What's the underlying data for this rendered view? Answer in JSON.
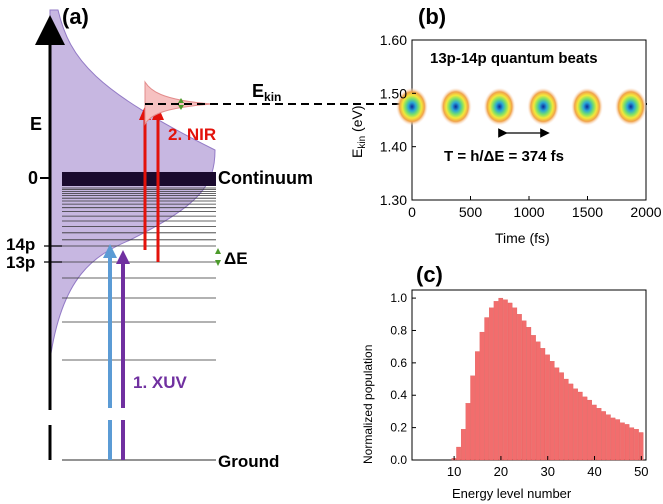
{
  "panel_a": {
    "panel_label": "(a)",
    "energy_axis_label": "E",
    "zero_label": "0",
    "ekin_label": "E",
    "ekin_sub": "kin",
    "nir_label": "2. NIR",
    "continuum_label": "Continuum",
    "delta_e_label": "ΔE",
    "state_14p": "14p",
    "state_13p": "13p",
    "xuv_label": "1. XUV",
    "ground_label": "Ground",
    "colors": {
      "xuv_blue": "#5b9bd5",
      "xuv_purple": "#7030a0",
      "nir": "#e3120b",
      "wavepacket": "#b9a3d6",
      "continuum": "#1a0a2e"
    }
  },
  "panel_b": {
    "panel_label": "(b)",
    "title": "13p-14p quantum beats",
    "period_label": "T = h/ΔE = 374 fs",
    "xlabel": "Time (fs)",
    "ylabel": "E",
    "ylabel_sub": "kin",
    "ylabel_unit": " (eV)"
  },
  "panel_c": {
    "panel_label": "(c)",
    "xlabel": "Energy level number",
    "ylabel": "Normalized population"
  },
  "chart_data": [
    {
      "type": "heatmap",
      "title": "13p-14p quantum beats",
      "xlabel": "Time (fs)",
      "ylabel": "Ekin (eV)",
      "xlim": [
        0,
        2000
      ],
      "ylim": [
        1.3,
        1.6
      ],
      "xticks": [
        "0",
        "500",
        "1000",
        "1500",
        "2000"
      ],
      "yticks": [
        "1.30",
        "1.40",
        "1.50",
        "1.60"
      ],
      "peak_energy": 1.475,
      "peak_times": [
        0,
        374,
        748,
        1122,
        1496,
        1870
      ]
    },
    {
      "type": "bar",
      "xlabel": "Energy level number",
      "ylabel": "Normalized population",
      "xlim": [
        1,
        51
      ],
      "ylim": [
        0,
        1.05
      ],
      "xticks": [
        "10",
        "20",
        "30",
        "40",
        "50"
      ],
      "yticks": [
        "0.0",
        "0.2",
        "0.4",
        "0.6",
        "0.8",
        "1.0"
      ],
      "color": "#f26d6d",
      "categories": [
        10,
        11,
        12,
        13,
        14,
        15,
        16,
        17,
        18,
        19,
        20,
        21,
        22,
        23,
        24,
        25,
        26,
        27,
        28,
        29,
        30,
        31,
        32,
        33,
        34,
        35,
        36,
        37,
        38,
        39,
        40,
        41,
        42,
        43,
        44,
        45,
        46,
        47,
        48,
        49,
        50
      ],
      "values": [
        0.01,
        0.08,
        0.19,
        0.35,
        0.52,
        0.67,
        0.79,
        0.88,
        0.94,
        0.98,
        1.0,
        0.99,
        0.97,
        0.94,
        0.9,
        0.86,
        0.82,
        0.77,
        0.73,
        0.69,
        0.65,
        0.61,
        0.57,
        0.54,
        0.5,
        0.47,
        0.44,
        0.42,
        0.39,
        0.37,
        0.34,
        0.32,
        0.3,
        0.28,
        0.26,
        0.25,
        0.23,
        0.22,
        0.2,
        0.19,
        0.17
      ]
    }
  ]
}
